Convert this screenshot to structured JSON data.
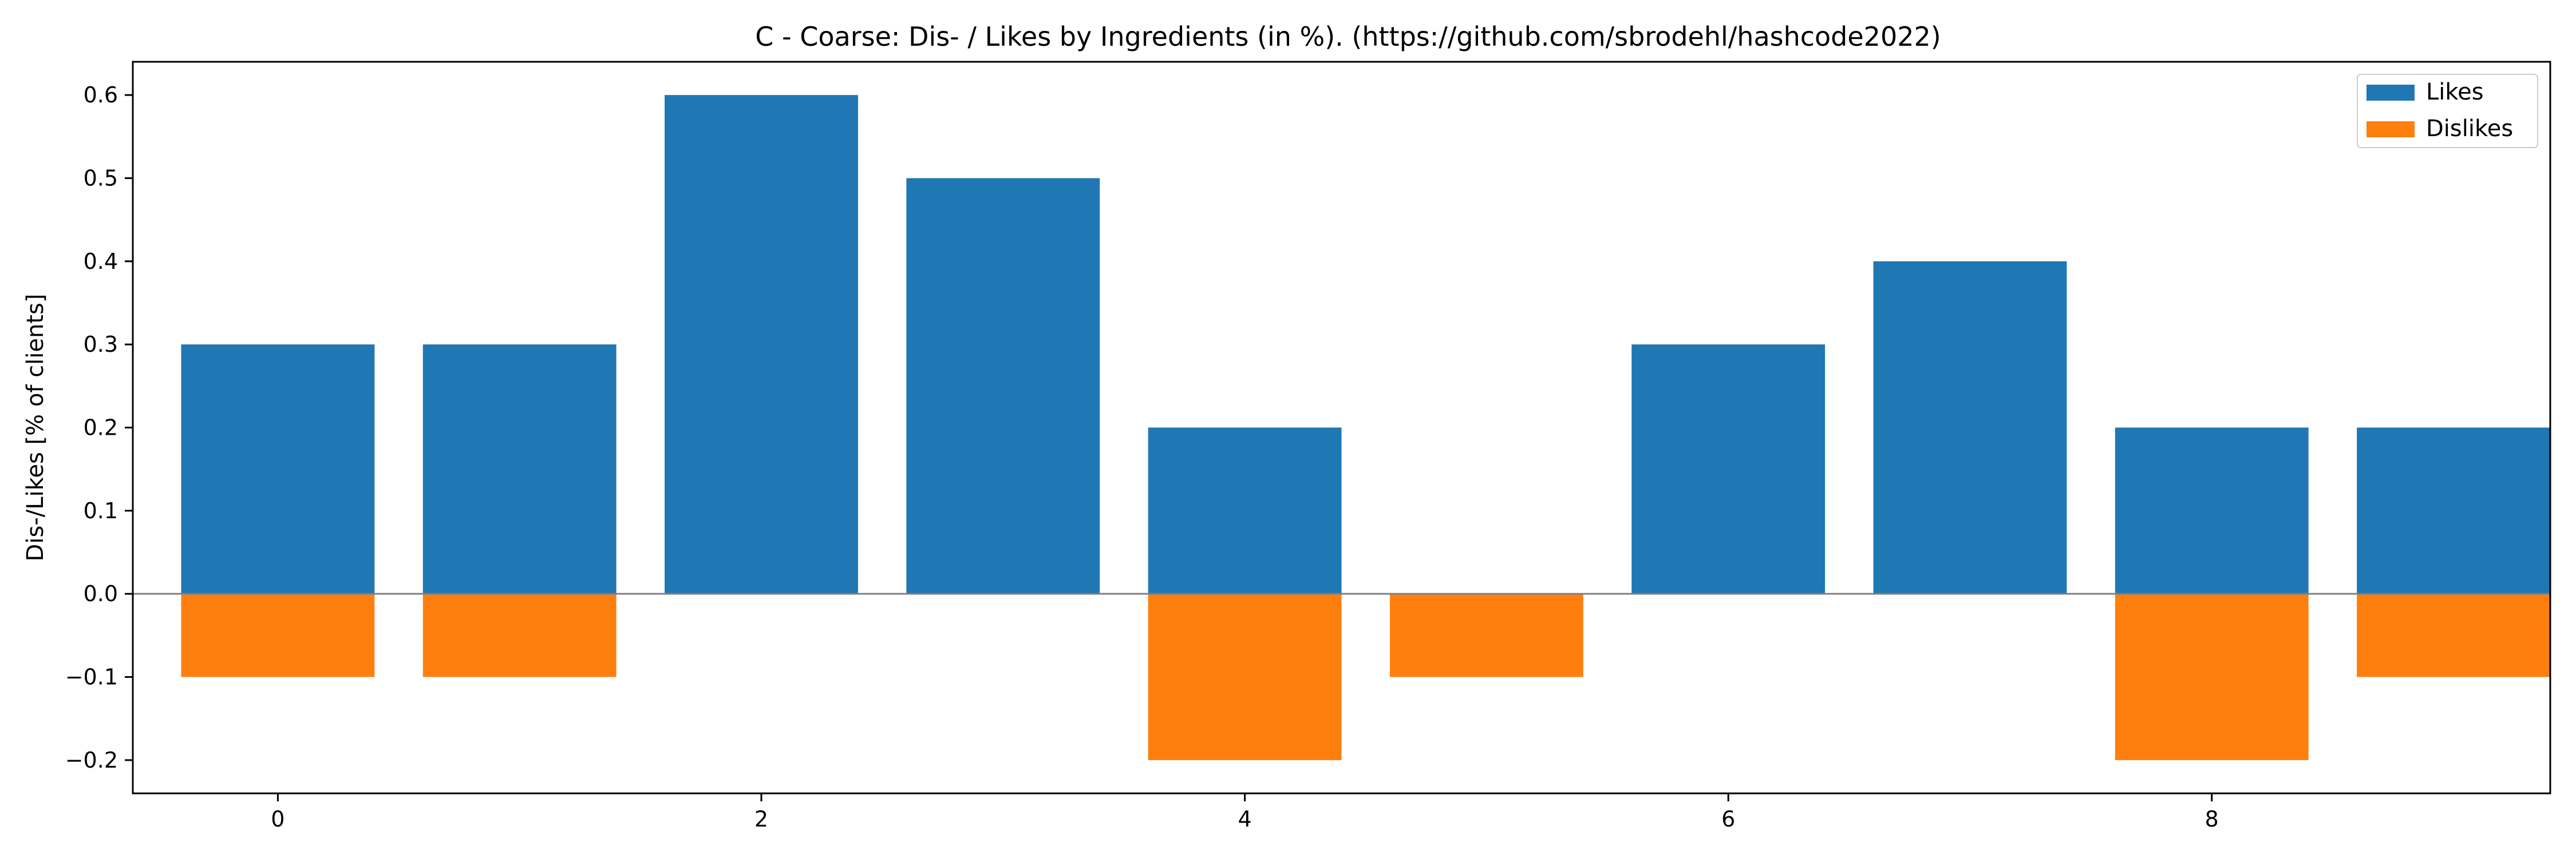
{
  "chart_data": {
    "type": "bar",
    "title": "C - Coarse: Dis- / Likes by Ingredients (in %). (https://github.com/sbrodehl/hashcode2022)",
    "xlabel": "",
    "ylabel": "Dis-/Likes [% of clients]",
    "x": [
      0,
      1,
      2,
      3,
      4,
      5,
      6,
      7,
      8,
      9
    ],
    "xticks": [
      0,
      2,
      4,
      6,
      8
    ],
    "yticks": [
      -0.2,
      -0.1,
      0.0,
      0.1,
      0.2,
      0.3,
      0.4,
      0.5,
      0.6
    ],
    "ytick_labels": [
      "−0.2",
      "−0.1",
      "0.0",
      "0.1",
      "0.2",
      "0.3",
      "0.4",
      "0.5",
      "0.6"
    ],
    "xlim": [
      -0.6,
      9.4
    ],
    "ylim": [
      -0.24,
      0.64
    ],
    "grid": false,
    "legend_position": "top-right",
    "series": [
      {
        "name": "Likes",
        "color": "#1f77b4",
        "values": [
          0.3,
          0.3,
          0.6,
          0.5,
          0.2,
          0.0,
          0.3,
          0.4,
          0.2,
          0.2
        ]
      },
      {
        "name": "Dislikes",
        "color": "#ff7f0e",
        "values": [
          -0.1,
          -0.1,
          0.0,
          0.0,
          -0.2,
          -0.1,
          0.0,
          0.0,
          -0.2,
          -0.1
        ]
      }
    ]
  }
}
